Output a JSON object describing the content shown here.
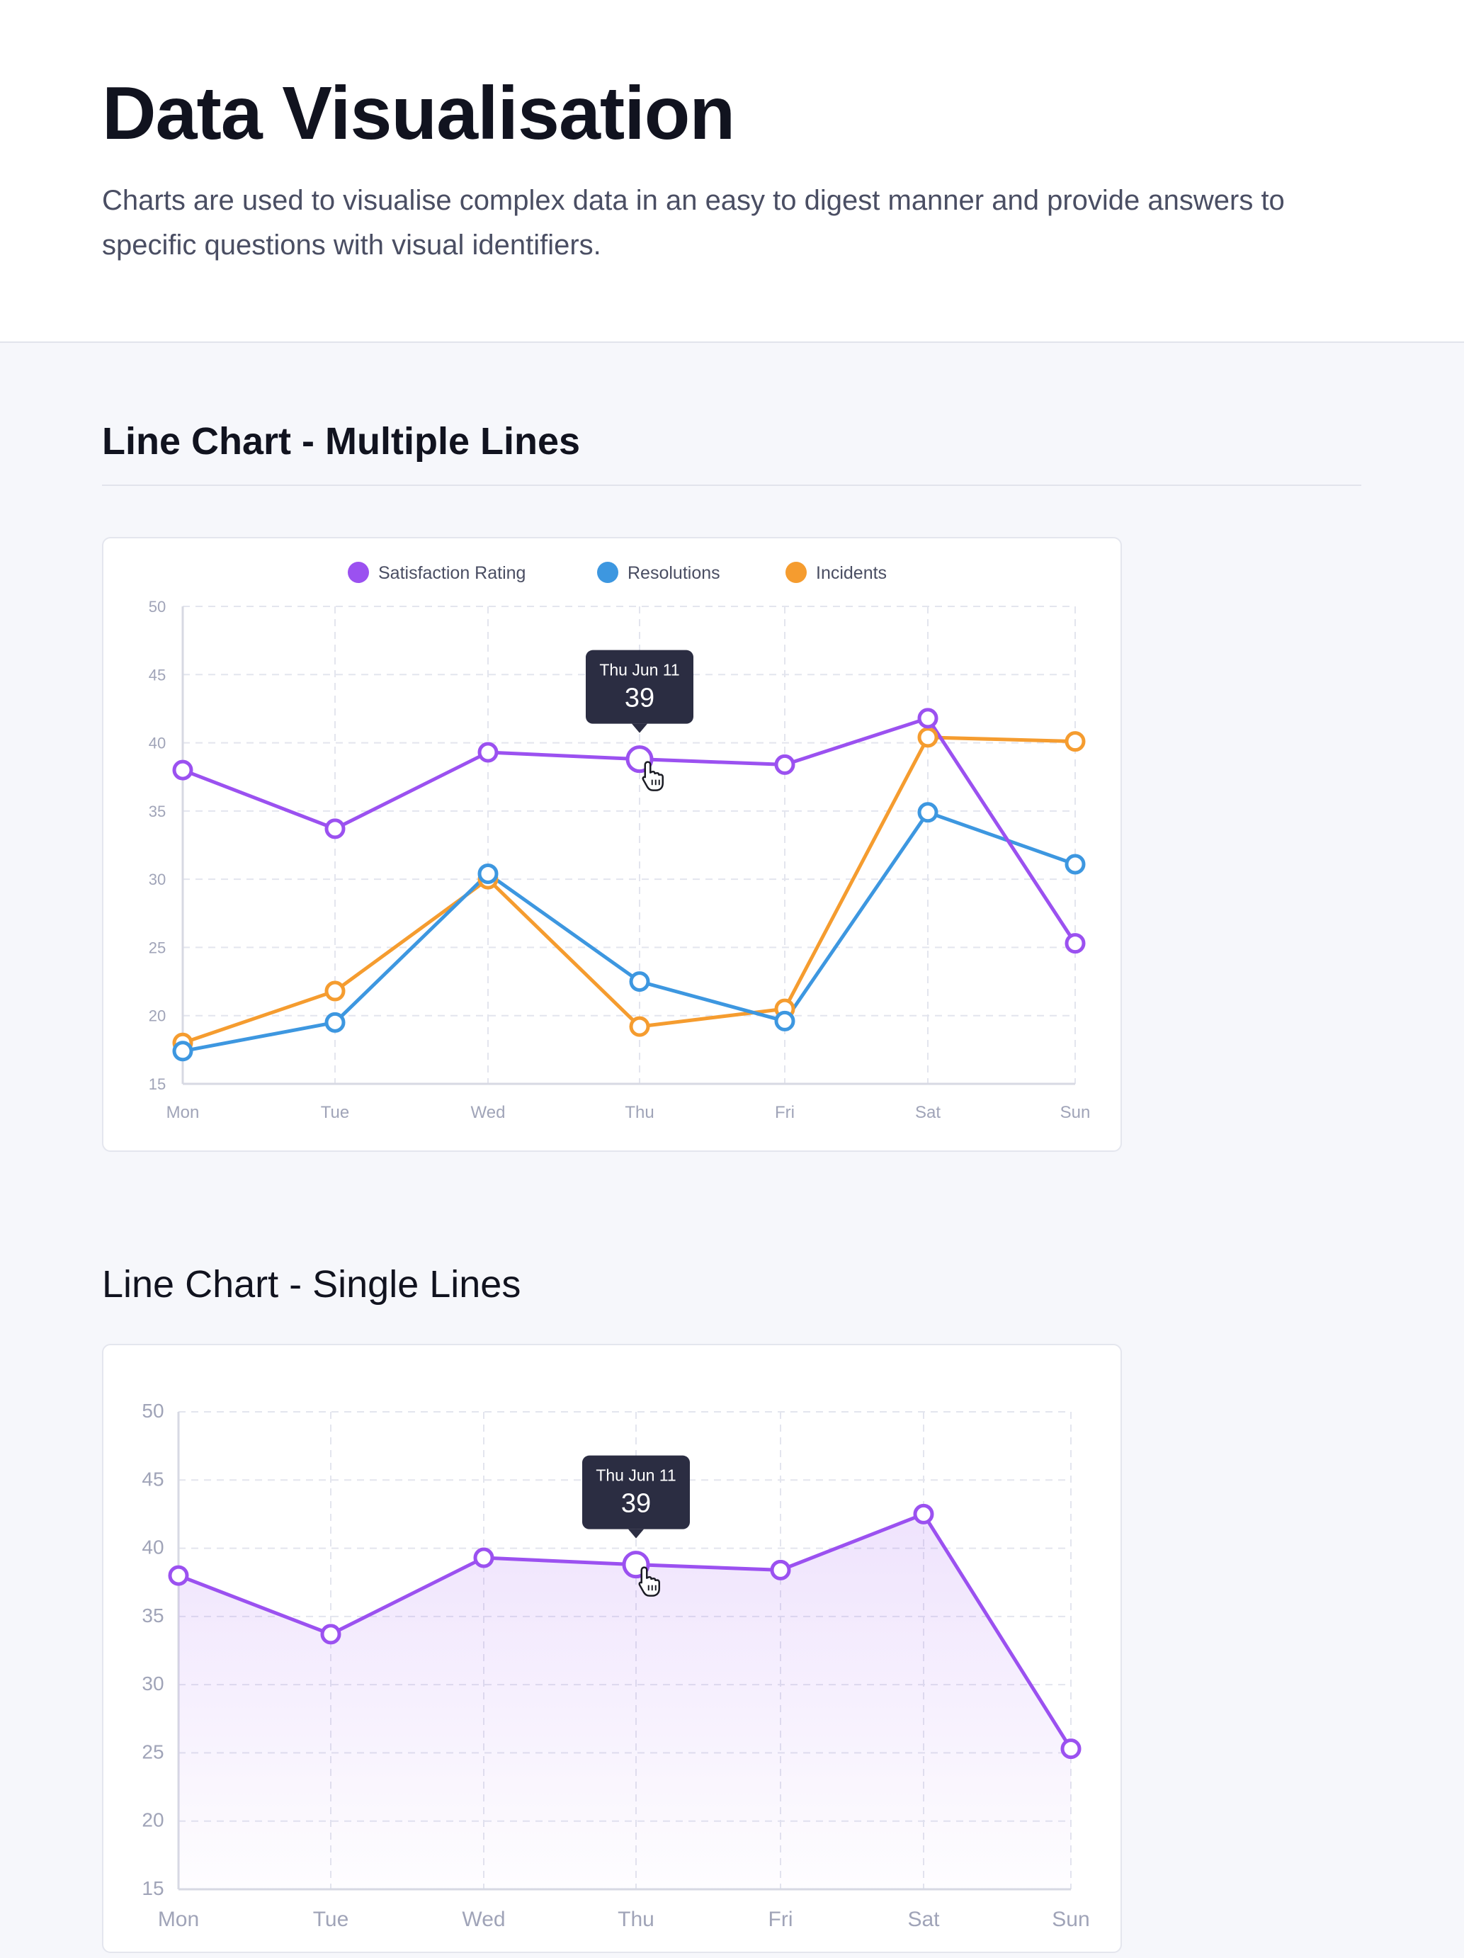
{
  "page": {
    "title": "Data Visualisation",
    "description": "Charts are used to visualise complex data in an easy to digest manner and provide answers to specific questions with visual identifiers."
  },
  "sections": [
    {
      "title": "Line Chart - Multiple Lines"
    },
    {
      "title": "Line Chart - Single Lines"
    }
  ],
  "colors": {
    "satisfaction": "#9b51f0",
    "resolutions": "#3d97e0",
    "incidents": "#f59c2f",
    "tooltip_bg": "#2b2d42",
    "grid": "#e3e5ee",
    "axis_text": "#a0a4b8"
  },
  "chart_data": [
    {
      "type": "line",
      "title": "Line Chart - Multiple Lines",
      "categories": [
        "Mon",
        "Tue",
        "Wed",
        "Thu",
        "Fri",
        "Sat",
        "Sun"
      ],
      "ylim": [
        15,
        50
      ],
      "yticks": [
        50,
        45,
        40,
        35,
        30,
        25,
        20,
        15
      ],
      "grid": true,
      "legend": "top-center",
      "series": [
        {
          "name": "Satisfaction Rating",
          "color": "#9b51f0",
          "values": [
            38,
            33.7,
            39.3,
            38.8,
            38.4,
            41.8,
            25.3
          ]
        },
        {
          "name": "Resolutions",
          "color": "#3d97e0",
          "values": [
            17.4,
            19.5,
            30.4,
            22.5,
            19.6,
            34.9,
            31.1
          ]
        },
        {
          "name": "Incidents",
          "color": "#f59c2f",
          "values": [
            18,
            21.8,
            30,
            19.2,
            20.5,
            40.4,
            40.1
          ]
        }
      ],
      "tooltip": {
        "label": "Thu Jun 11",
        "value": "39",
        "series": "Satisfaction Rating",
        "category": "Thu"
      }
    },
    {
      "type": "area",
      "title": "Line Chart - Single Lines",
      "categories": [
        "Mon",
        "Tue",
        "Wed",
        "Thu",
        "Fri",
        "Sat",
        "Sun"
      ],
      "ylim": [
        15,
        50
      ],
      "yticks": [
        50,
        45,
        40,
        35,
        30,
        25,
        20,
        15
      ],
      "grid": true,
      "legend": "none",
      "series": [
        {
          "name": "Satisfaction Rating",
          "color": "#9b51f0",
          "values": [
            38,
            33.7,
            39.3,
            38.8,
            38.4,
            42.5,
            25.3
          ]
        }
      ],
      "tooltip": {
        "label": "Thu Jun 11",
        "value": "39",
        "series": "Satisfaction Rating",
        "category": "Thu"
      }
    }
  ]
}
